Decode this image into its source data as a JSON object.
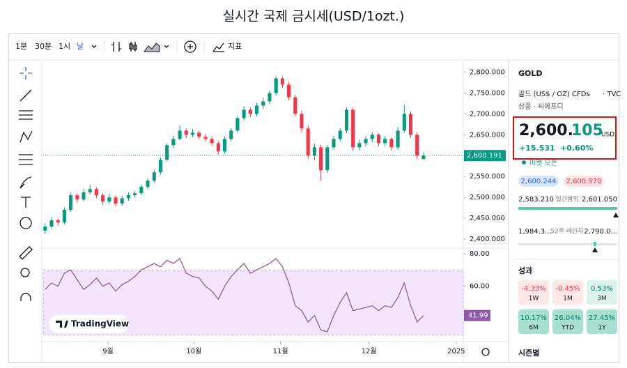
{
  "header": {
    "title": "실시간 국제 금시세(USD/1ozt.)"
  },
  "toolbar": {
    "intervals": [
      "1분",
      "30분",
      "1시",
      "날"
    ],
    "indicators": "지표"
  },
  "chart_data": {
    "type": "candlestick",
    "candles": [
      [
        2420,
        2438,
        2412,
        2430
      ],
      [
        2430,
        2452,
        2425,
        2445
      ],
      [
        2445,
        2450,
        2432,
        2440
      ],
      [
        2440,
        2476,
        2436,
        2470
      ],
      [
        2470,
        2512,
        2465,
        2505
      ],
      [
        2505,
        2510,
        2488,
        2495
      ],
      [
        2495,
        2520,
        2490,
        2512
      ],
      [
        2512,
        2530,
        2506,
        2520
      ],
      [
        2520,
        2524,
        2498,
        2505
      ],
      [
        2505,
        2510,
        2482,
        2490
      ],
      [
        2490,
        2508,
        2484,
        2500
      ],
      [
        2500,
        2504,
        2478,
        2485
      ],
      [
        2485,
        2503,
        2480,
        2498
      ],
      [
        2498,
        2512,
        2492,
        2505
      ],
      [
        2505,
        2516,
        2499,
        2510
      ],
      [
        2510,
        2530,
        2505,
        2525
      ],
      [
        2525,
        2546,
        2520,
        2540
      ],
      [
        2540,
        2566,
        2535,
        2560
      ],
      [
        2560,
        2596,
        2555,
        2590
      ],
      [
        2590,
        2630,
        2585,
        2625
      ],
      [
        2625,
        2648,
        2618,
        2640
      ],
      [
        2640,
        2672,
        2636,
        2660
      ],
      [
        2660,
        2666,
        2642,
        2650
      ],
      [
        2650,
        2664,
        2644,
        2655
      ],
      [
        2655,
        2660,
        2638,
        2645
      ],
      [
        2645,
        2652,
        2634,
        2640
      ],
      [
        2640,
        2646,
        2624,
        2630
      ],
      [
        2630,
        2636,
        2602,
        2610
      ],
      [
        2610,
        2646,
        2605,
        2640
      ],
      [
        2640,
        2666,
        2634,
        2660
      ],
      [
        2660,
        2696,
        2655,
        2690
      ],
      [
        2690,
        2718,
        2684,
        2710
      ],
      [
        2710,
        2716,
        2692,
        2700
      ],
      [
        2700,
        2726,
        2694,
        2720
      ],
      [
        2720,
        2738,
        2712,
        2730
      ],
      [
        2730,
        2756,
        2724,
        2750
      ],
      [
        2750,
        2790,
        2744,
        2785
      ],
      [
        2785,
        2790,
        2762,
        2770
      ],
      [
        2770,
        2776,
        2732,
        2740
      ],
      [
        2740,
        2746,
        2694,
        2700
      ],
      [
        2700,
        2708,
        2656,
        2665
      ],
      [
        2665,
        2672,
        2592,
        2600
      ],
      [
        2600,
        2628,
        2590,
        2620
      ],
      [
        2620,
        2626,
        2540,
        2565
      ],
      [
        2565,
        2626,
        2558,
        2620
      ],
      [
        2620,
        2648,
        2614,
        2640
      ],
      [
        2640,
        2666,
        2634,
        2660
      ],
      [
        2660,
        2716,
        2654,
        2710
      ],
      [
        2710,
        2714,
        2612,
        2620
      ],
      [
        2620,
        2638,
        2612,
        2630
      ],
      [
        2630,
        2646,
        2622,
        2640
      ],
      [
        2640,
        2656,
        2632,
        2650
      ],
      [
        2650,
        2654,
        2622,
        2630
      ],
      [
        2630,
        2646,
        2622,
        2640
      ],
      [
        2640,
        2644,
        2612,
        2620
      ],
      [
        2620,
        2668,
        2614,
        2660
      ],
      [
        2660,
        2722,
        2655,
        2700
      ],
      [
        2700,
        2706,
        2642,
        2650
      ],
      [
        2650,
        2656,
        2592,
        2600
      ],
      [
        2592,
        2608,
        2590,
        2600.191
      ]
    ],
    "up_color": "#089981",
    "down_color": "#f23645",
    "ylim": [
      2380,
      2826
    ],
    "yticks": [
      {
        "value": 2800,
        "label": "2,800.000"
      },
      {
        "value": 2750,
        "label": "2,750.000"
      },
      {
        "value": 2700,
        "label": "2,700.000"
      },
      {
        "value": 2650,
        "label": "2,650.000"
      },
      {
        "value": 2600,
        "label": "2,600.000"
      },
      {
        "value": 2550,
        "label": "2,550.000"
      },
      {
        "value": 2500,
        "label": "2,500.000"
      },
      {
        "value": 2450,
        "label": "2,450.000"
      },
      {
        "value": 2400,
        "label": "2,400.000"
      }
    ],
    "xlim": [
      -0.3,
      65.2
    ],
    "xticks": [
      {
        "value": 9.8,
        "label": "9월"
      },
      {
        "value": 23.2,
        "label": "10월"
      },
      {
        "value": 36.7,
        "label": "11월"
      },
      {
        "value": 50.5,
        "label": "12월"
      },
      {
        "value": 64.1,
        "label": "2025"
      }
    ],
    "last_price": {
      "value": 2600.191,
      "label": "2,600.191"
    },
    "logo": "TradingView",
    "rsi": {
      "type": "line",
      "color": "#8e5aa8",
      "band_color": "#f3e6fc",
      "band": [
        30,
        70
      ],
      "ylim": [
        26,
        83
      ],
      "yticks": [
        {
          "value": 80,
          "label": "80.00"
        },
        {
          "value": 60,
          "label": "60.00"
        }
      ],
      "values": [
        58,
        62,
        60,
        68,
        70,
        64,
        58,
        61,
        65,
        60,
        62,
        57,
        61,
        63,
        66,
        70,
        72,
        74,
        72,
        76,
        74,
        77,
        68,
        66,
        65,
        60,
        57,
        52,
        60,
        66,
        70,
        74,
        68,
        70,
        72,
        74,
        77,
        72,
        62,
        48,
        45,
        38,
        42,
        33,
        32,
        42,
        50,
        56,
        45,
        46,
        47,
        48,
        45,
        48,
        47,
        53,
        62,
        48,
        38,
        41.99
      ],
      "last": {
        "value": 41.99,
        "label": "41.99"
      }
    }
  },
  "sidebar": {
    "symbol": "GOLD",
    "description": "골드 (US$ / OZ) CFDs",
    "exchange": "· TVC",
    "category": "상품 · 씨에프디",
    "price_main": "2,600.",
    "price_decimal": "105",
    "currency": "USD",
    "change": "+15.531",
    "change_pct": "+0.60%",
    "status": "마켓 오픈",
    "bid": "2,600.244",
    "ask": "2,600.570",
    "day_low": "2,583.210",
    "day_label": "일간범위",
    "day_high": "2,601.050",
    "week_low": "1,984.3...",
    "week_label": "52주 레인지",
    "week_high": "2,790.0...",
    "performance_title": "성과",
    "performance": [
      {
        "value": "-4.33%",
        "period": "1W"
      },
      {
        "value": "-0.45%",
        "period": "1M"
      },
      {
        "value": "0.53%",
        "period": "3M"
      },
      {
        "value": "10.17%",
        "period": "6M"
      },
      {
        "value": "26.04%",
        "period": "YTD"
      },
      {
        "value": "27.45%",
        "period": "1Y"
      }
    ],
    "seasonal": "시즌별"
  }
}
